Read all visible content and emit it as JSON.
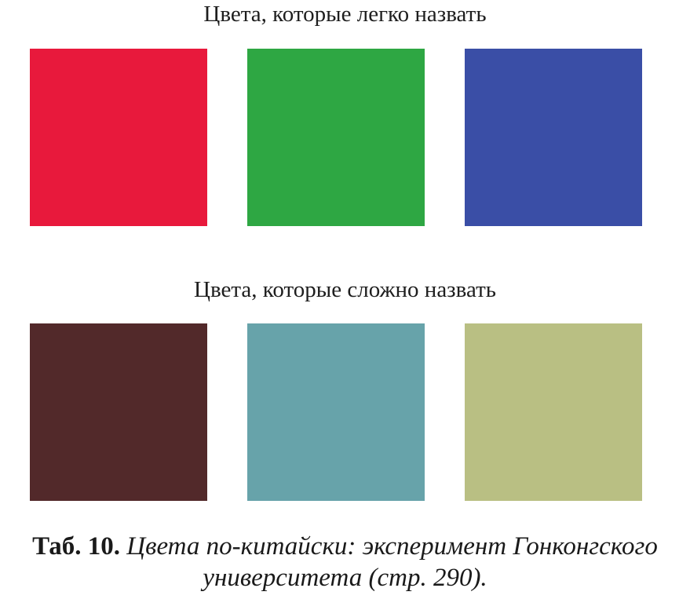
{
  "groups": [
    {
      "title": "Цвета, которые легко назвать",
      "swatches": [
        {
          "name": "red",
          "color": "#e8193c"
        },
        {
          "name": "green",
          "color": "#2ea743"
        },
        {
          "name": "blue",
          "color": "#3a4ea6"
        }
      ]
    },
    {
      "title": "Цвета, которые сложно назвать",
      "swatches": [
        {
          "name": "dark-brown",
          "color": "#52292a"
        },
        {
          "name": "teal",
          "color": "#67a3aa"
        },
        {
          "name": "olive",
          "color": "#b9bf83"
        }
      ]
    }
  ],
  "caption": {
    "label": "Таб. 10.",
    "text": "Цвета по-китайски: эксперимент Гонконгского университета (стр. 290)."
  }
}
